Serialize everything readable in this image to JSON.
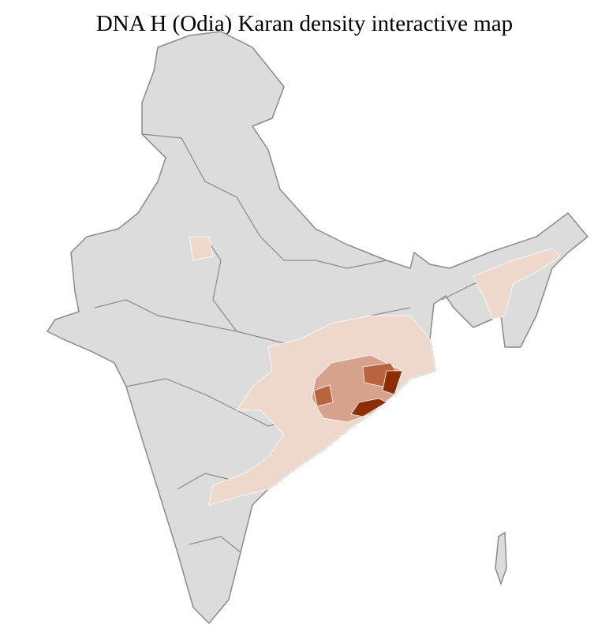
{
  "title": "DNA H (Odia) Karan density interactive map",
  "colors": {
    "base": "#dcdcdc",
    "state_border": "#8a8a8a",
    "district_border": "#ffffff",
    "density_low": "#eed7cb",
    "density_mid": "#d6a28b",
    "density_high": "#b9643e",
    "density_max": "#8c2d04"
  }
}
